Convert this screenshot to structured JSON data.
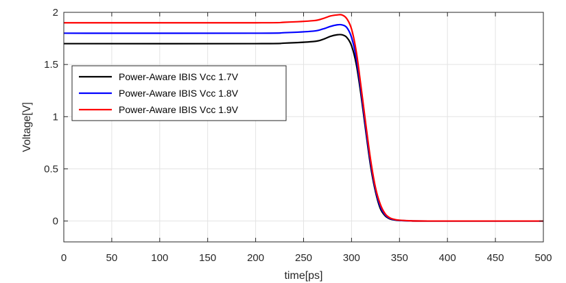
{
  "chart_data": {
    "type": "line",
    "title": "",
    "xlabel": "time[ps]",
    "ylabel": "Voltage[V]",
    "xlim": [
      0,
      500
    ],
    "ylim": [
      -0.2,
      2.0
    ],
    "xticks": [
      0,
      50,
      100,
      150,
      200,
      250,
      300,
      350,
      400,
      450,
      500
    ],
    "yticks": [
      0,
      0.5,
      1,
      1.5,
      2
    ],
    "ytick_labels": [
      "0",
      "0.5",
      "1",
      "1.5",
      "2"
    ],
    "grid": true,
    "legend_position": "upper-left",
    "series": [
      {
        "name": "Power-Aware IBIS Vcc 1.7V",
        "color": "#000000",
        "x": [
          0,
          200,
          230,
          260,
          270,
          278,
          285,
          290,
          295,
          300,
          305,
          310,
          315,
          320,
          325,
          330,
          335,
          340,
          345,
          350,
          360,
          380,
          500
        ],
        "y": [
          1.7,
          1.7,
          1.705,
          1.72,
          1.74,
          1.77,
          1.785,
          1.785,
          1.76,
          1.68,
          1.5,
          1.2,
          0.85,
          0.52,
          0.28,
          0.12,
          0.05,
          0.02,
          0.01,
          0.005,
          0.002,
          0.0,
          0.0
        ]
      },
      {
        "name": "Power-Aware IBIS Vcc 1.8V",
        "color": "#0000ff",
        "x": [
          0,
          200,
          230,
          260,
          270,
          278,
          285,
          290,
          295,
          300,
          305,
          310,
          315,
          320,
          325,
          330,
          335,
          340,
          345,
          350,
          360,
          380,
          500
        ],
        "y": [
          1.8,
          1.8,
          1.805,
          1.82,
          1.84,
          1.865,
          1.88,
          1.88,
          1.855,
          1.76,
          1.56,
          1.24,
          0.88,
          0.55,
          0.3,
          0.14,
          0.06,
          0.025,
          0.012,
          0.006,
          0.002,
          0.0,
          0.0
        ]
      },
      {
        "name": "Power-Aware IBIS Vcc 1.9V",
        "color": "#ff0000",
        "x": [
          0,
          200,
          230,
          260,
          270,
          278,
          285,
          290,
          295,
          300,
          305,
          310,
          315,
          320,
          325,
          330,
          335,
          340,
          345,
          350,
          360,
          380,
          500
        ],
        "y": [
          1.9,
          1.9,
          1.905,
          1.92,
          1.94,
          1.965,
          1.975,
          1.975,
          1.94,
          1.84,
          1.62,
          1.28,
          0.92,
          0.58,
          0.32,
          0.16,
          0.07,
          0.03,
          0.015,
          0.008,
          0.003,
          0.0,
          0.0
        ]
      }
    ]
  }
}
